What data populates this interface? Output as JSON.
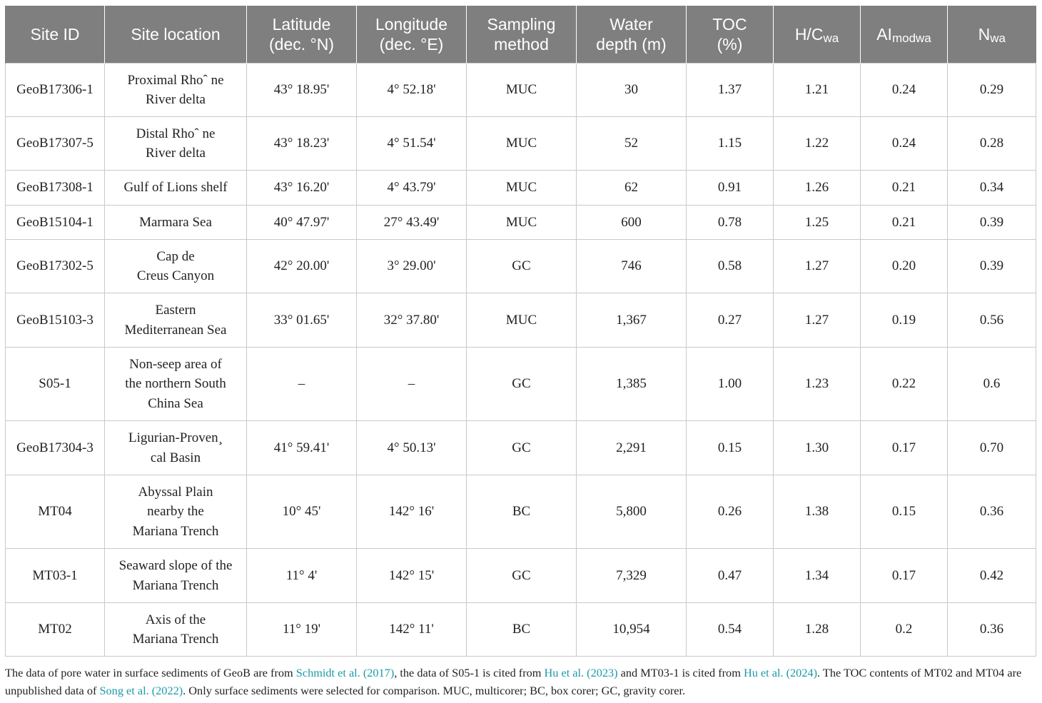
{
  "table": {
    "headers": [
      {
        "text": "Site ID",
        "sub": ""
      },
      {
        "text": "Site location",
        "sub": ""
      },
      {
        "text": "Latitude\n(dec. °N)",
        "sub": ""
      },
      {
        "text": "Longitude\n(dec. °E)",
        "sub": ""
      },
      {
        "text": "Sampling\nmethod",
        "sub": ""
      },
      {
        "text": "Water\ndepth (m)",
        "sub": ""
      },
      {
        "text": "TOC\n(%)",
        "sub": ""
      },
      {
        "text": "H/C",
        "sub": "wa"
      },
      {
        "text": "AI",
        "sub": "modwa"
      },
      {
        "text": "N",
        "sub": "wa"
      }
    ],
    "rows": [
      [
        "GeoB17306-1",
        "Proximal Rhoˆ ne\nRiver delta",
        "43° 18.95'",
        "4° 52.18'",
        "MUC",
        "30",
        "1.37",
        "1.21",
        "0.24",
        "0.29"
      ],
      [
        "GeoB17307-5",
        "Distal Rhoˆ ne\nRiver delta",
        "43° 18.23'",
        "4° 51.54'",
        "MUC",
        "52",
        "1.15",
        "1.22",
        "0.24",
        "0.28"
      ],
      [
        "GeoB17308-1",
        "Gulf of Lions shelf",
        "43° 16.20'",
        "4° 43.79'",
        "MUC",
        "62",
        "0.91",
        "1.26",
        "0.21",
        "0.34"
      ],
      [
        "GeoB15104-1",
        "Marmara Sea",
        "40° 47.97'",
        "27° 43.49'",
        "MUC",
        "600",
        "0.78",
        "1.25",
        "0.21",
        "0.39"
      ],
      [
        "GeoB17302-5",
        "Cap de\nCreus Canyon",
        "42° 20.00'",
        "3° 29.00'",
        "GC",
        "746",
        "0.58",
        "1.27",
        "0.20",
        "0.39"
      ],
      [
        "GeoB15103-3",
        "Eastern\nMediterranean Sea",
        "33° 01.65'",
        "32° 37.80'",
        "MUC",
        "1,367",
        "0.27",
        "1.27",
        "0.19",
        "0.56"
      ],
      [
        "S05-1",
        "Non-seep area of\nthe northern South\nChina Sea",
        "–",
        "–",
        "GC",
        "1,385",
        "1.00",
        "1.23",
        "0.22",
        "0.6"
      ],
      [
        "GeoB17304-3",
        "Ligurian-Proven¸\ncal Basin",
        "41° 59.41'",
        "4° 50.13'",
        "GC",
        "2,291",
        "0.15",
        "1.30",
        "0.17",
        "0.70"
      ],
      [
        "MT04",
        "Abyssal Plain\nnearby the\nMariana Trench",
        "10° 45'",
        "142° 16'",
        "BC",
        "5,800",
        "0.26",
        "1.38",
        "0.15",
        "0.36"
      ],
      [
        "MT03-1",
        "Seaward slope of the\nMariana Trench",
        "11° 4'",
        "142° 15'",
        "GC",
        "7,329",
        "0.47",
        "1.34",
        "0.17",
        "0.42"
      ],
      [
        "MT02",
        "Axis of the\nMariana Trench",
        "11° 19'",
        "142° 11'",
        "BC",
        "10,954",
        "0.54",
        "1.28",
        "0.2",
        "0.36"
      ]
    ]
  },
  "footnote": {
    "parts": [
      {
        "text": "The data of pore water in surface sediments of GeoB are from ",
        "cite": false
      },
      {
        "text": "Schmidt et al. (2017)",
        "cite": true
      },
      {
        "text": ", the data of S05-1 is cited from ",
        "cite": false
      },
      {
        "text": "Hu et al. (2023)",
        "cite": true
      },
      {
        "text": " and MT03-1 is cited from ",
        "cite": false
      },
      {
        "text": "Hu et al. (2024)",
        "cite": true
      },
      {
        "text": ". The TOC contents of MT02 and MT04 are unpublished data of ",
        "cite": false
      },
      {
        "text": "Song et al. (2022)",
        "cite": true
      },
      {
        "text": ". Only surface sediments were selected for comparison. MUC, multicorer; BC, box corer; GC, gravity corer.",
        "cite": false
      }
    ]
  },
  "colors": {
    "header_bg": "#7f7f7f",
    "header_text": "#ffffff",
    "citation_link": "#1a9aa8",
    "grid_line": "#c9c9c9"
  }
}
